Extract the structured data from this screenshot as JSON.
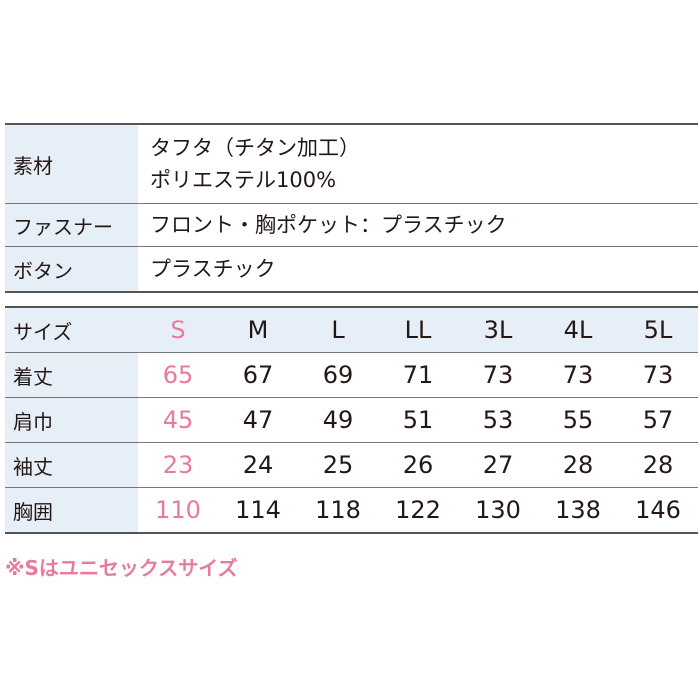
{
  "spec": {
    "rows": [
      {
        "label": "素材",
        "lines": [
          "タフタ（チタン加工）",
          "ポリエステル100%"
        ]
      },
      {
        "label": "ファスナー",
        "lines": [
          "フロント・胸ポケット：プラスチック"
        ]
      },
      {
        "label": "ボタン",
        "lines": [
          "プラスチック"
        ]
      }
    ]
  },
  "sizes": {
    "header_label": "サイズ",
    "header": [
      "S",
      "M",
      "L",
      "LL",
      "3L",
      "4L",
      "5L"
    ],
    "rows": [
      {
        "label": "着丈",
        "values": [
          65,
          67,
          69,
          71,
          73,
          73,
          73
        ]
      },
      {
        "label": "肩巾",
        "values": [
          45,
          47,
          49,
          51,
          53,
          55,
          57
        ]
      },
      {
        "label": "袖丈",
        "values": [
          23,
          24,
          25,
          26,
          27,
          28,
          28
        ]
      },
      {
        "label": "胸囲",
        "values": [
          110,
          114,
          118,
          122,
          130,
          138,
          146
        ]
      }
    ]
  },
  "note": "※Sはユニセックスサイズ"
}
